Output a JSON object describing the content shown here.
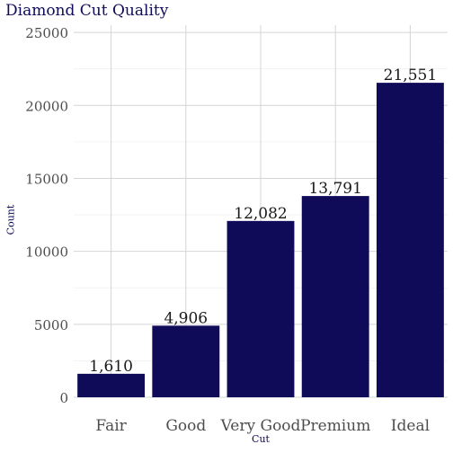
{
  "chart_data": {
    "type": "bar",
    "title": "Diamond Cut Quality",
    "xlabel": "Cut",
    "ylabel": "Count",
    "categories": [
      "Fair",
      "Good",
      "Very Good",
      "Premium",
      "Ideal"
    ],
    "values": [
      1610,
      4906,
      12082,
      13791,
      21551
    ],
    "value_labels": [
      "1,610",
      "4,906",
      "12,082",
      "13,791",
      "21,551"
    ],
    "y_ticks": [
      0,
      5000,
      10000,
      15000,
      20000,
      25000
    ],
    "ylim": [
      0,
      25500
    ],
    "grid": true,
    "legend": "none",
    "colors": {
      "bar": "#0f0b59",
      "title": "#0f0b59",
      "tick_text": "#4d4d4d",
      "value_text": "#1a1a1a"
    }
  }
}
